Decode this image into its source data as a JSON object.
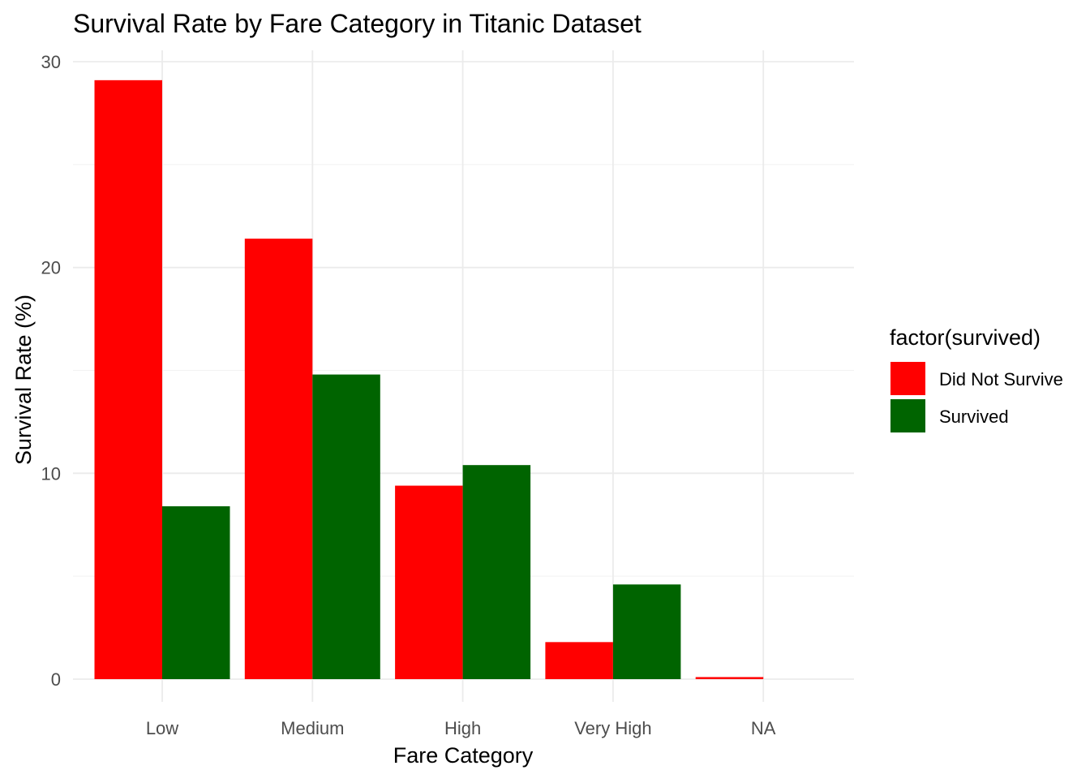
{
  "chart_data": {
    "type": "bar",
    "title": "Survival Rate by Fare Category in Titanic Dataset",
    "xlabel": "Fare Category",
    "ylabel": "Survival Rate (%)",
    "categories": [
      "Low",
      "Medium",
      "High",
      "Very High",
      "NA"
    ],
    "series": [
      {
        "name": "Did Not Survive",
        "color": "#ff0000",
        "values": [
          29.1,
          21.4,
          9.4,
          1.8,
          0.1
        ]
      },
      {
        "name": "Survived",
        "color": "#006400",
        "values": [
          8.4,
          14.8,
          10.4,
          4.6,
          0
        ]
      }
    ],
    "ylim": [
      0,
      30
    ],
    "yticks": [
      0,
      10,
      20,
      30
    ],
    "yticks_labels": [
      "0",
      "10",
      "20",
      "30"
    ],
    "grid": true,
    "legend": {
      "title": "factor(survived)",
      "position": "right"
    }
  }
}
